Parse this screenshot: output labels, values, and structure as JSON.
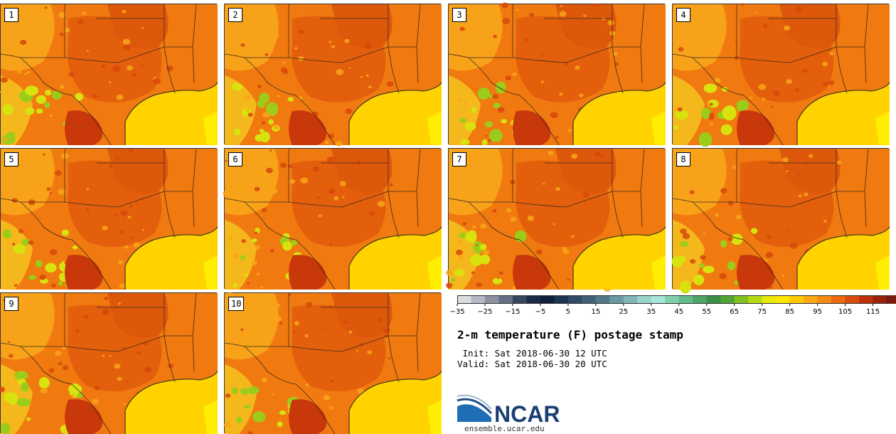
{
  "panels": [
    {
      "member": "1"
    },
    {
      "member": "2"
    },
    {
      "member": "3"
    },
    {
      "member": "4"
    },
    {
      "member": "5"
    },
    {
      "member": "6"
    },
    {
      "member": "7"
    },
    {
      "member": "8"
    },
    {
      "member": "9"
    },
    {
      "member": "10"
    }
  ],
  "colorbar": {
    "tick_labels": [
      "−35",
      "−25",
      "−15",
      "−5",
      "5",
      "15",
      "25",
      "35",
      "45",
      "55",
      "65",
      "75",
      "85",
      "95",
      "105",
      "115"
    ],
    "tick_values": [
      -35,
      -25,
      -15,
      -5,
      5,
      15,
      25,
      35,
      45,
      55,
      65,
      75,
      85,
      95,
      105,
      115
    ],
    "min": -35,
    "max": 120,
    "bin_width": 5,
    "colors": [
      "#dcdde3",
      "#b6b8c4",
      "#8d91a2",
      "#647087",
      "#36475f",
      "#1c2b45",
      "#0f1f3a",
      "#1d3450",
      "#2e4a66",
      "#3f6077",
      "#517887",
      "#6a9aa2",
      "#80b5b5",
      "#98d4cc",
      "#a7e5db",
      "#7fd1ad",
      "#62bd8a",
      "#4ea666",
      "#3c8f43",
      "#52a534",
      "#7fc21f",
      "#b6da12",
      "#e8ea0b",
      "#ffe600",
      "#ffc800",
      "#fba814",
      "#f58a14",
      "#ed6a10",
      "#d84c0e",
      "#bc320c",
      "#9c220c",
      "#7f1a0e",
      "#5e140a"
    ]
  },
  "title": "2-m temperature (F) postage stamp",
  "init_line": " Init: Sat 2018-06-30 12 UTC",
  "valid_line": "Valid: Sat 2018-06-30 20 UTC",
  "logo": {
    "name": "NCAR",
    "url": "ensemble.ucar.edu"
  }
}
